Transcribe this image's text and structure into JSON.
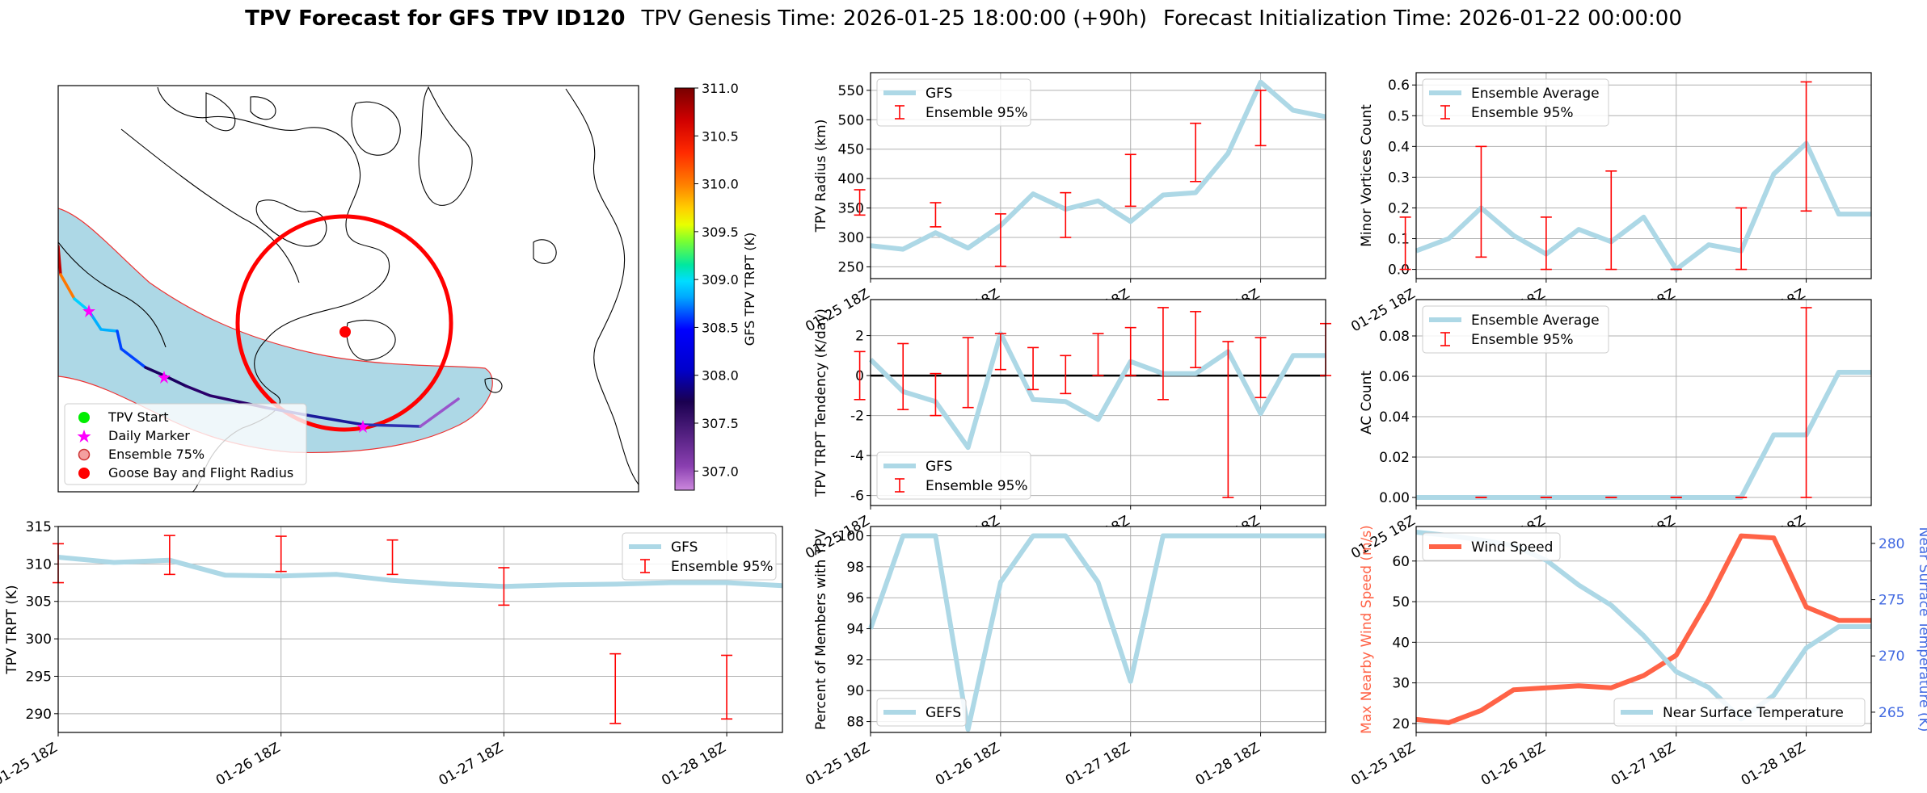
{
  "title": {
    "bold": "TPV Forecast for GFS TPV ID120",
    "genesis": "TPV Genesis Time: 2026-01-25 18:00:00 (+90h)",
    "init": "Forecast Initialization Time: 2026-01-22 00:00:00"
  },
  "colors": {
    "gfs_line": "#add8e6",
    "ensemble": "#ff0000",
    "wind": "#ff6347",
    "temp_axis": "#4169e1",
    "wind_axis": "#ff6347",
    "ocean_shade": "#add8e6",
    "zero_line": "#000000"
  },
  "x_ticks": [
    "01-25 18Z",
    "01-26 18Z",
    "01-27 18Z",
    "01-28 18Z"
  ],
  "map": {
    "legend": {
      "start": "TPV Start",
      "daily": "Daily Marker",
      "ensemble": "Ensemble 75%",
      "goose": "Goose Bay and Flight Radius"
    },
    "colorbar": {
      "label": "GFS TPV TRPT (K)",
      "min": 306.8,
      "max": 311.0,
      "ticks": [
        "311.0",
        "310.5",
        "310.0",
        "309.5",
        "309.0",
        "308.5",
        "308.0",
        "307.5",
        "307.0"
      ]
    },
    "icons": {
      "start": "green-circle",
      "daily": "magenta-star",
      "ensemble": "red-ring-circle",
      "goose": "red-circle"
    }
  },
  "chart_data": [
    {
      "id": "radius",
      "type": "line",
      "ylabel": "TPV Radius (km)",
      "xlim": [
        0,
        42
      ],
      "ylim": [
        230,
        580
      ],
      "yticks": [
        250,
        300,
        350,
        400,
        450,
        500,
        550
      ],
      "legend": [
        "GFS",
        "Ensemble 95%"
      ],
      "legend_loc": "upper-left",
      "series": [
        {
          "name": "GFS",
          "x": [
            0,
            3,
            6,
            9,
            12,
            15,
            18,
            21,
            24,
            27,
            30,
            33,
            36,
            39,
            42
          ],
          "y": [
            286,
            280,
            308,
            282,
            320,
            374,
            348,
            362,
            327,
            372,
            376,
            443,
            564,
            516,
            505
          ]
        }
      ],
      "errorbars": [
        {
          "x": -1,
          "lo": 338,
          "hi": 381
        },
        {
          "x": 6,
          "lo": 318,
          "hi": 359
        },
        {
          "x": 12,
          "lo": 251,
          "hi": 340
        },
        {
          "x": 18,
          "lo": 300,
          "hi": 376
        },
        {
          "x": 24,
          "lo": 353,
          "hi": 441
        },
        {
          "x": 30,
          "lo": 395,
          "hi": 494
        },
        {
          "x": 36,
          "lo": 456,
          "hi": 550
        }
      ]
    },
    {
      "id": "minor",
      "type": "line",
      "ylabel": "Minor Vortices Count",
      "xlim": [
        0,
        42
      ],
      "ylim": [
        -0.03,
        0.64
      ],
      "yticks": [
        0.0,
        0.1,
        0.2,
        0.3,
        0.4,
        0.5,
        0.6
      ],
      "ytick_decimals": 1,
      "legend": [
        "Ensemble Average",
        "Ensemble 95%"
      ],
      "legend_loc": "upper-left",
      "series": [
        {
          "name": "Ensemble Average",
          "x": [
            0,
            3,
            6,
            9,
            12,
            15,
            18,
            21,
            24,
            27,
            30,
            33,
            36,
            39,
            42
          ],
          "y": [
            0.06,
            0.1,
            0.2,
            0.11,
            0.05,
            0.13,
            0.09,
            0.17,
            0.0,
            0.08,
            0.06,
            0.31,
            0.41,
            0.18,
            0.18
          ]
        }
      ],
      "errorbars": [
        {
          "x": -1,
          "lo": 0.0,
          "hi": 0.17
        },
        {
          "x": 6,
          "lo": 0.04,
          "hi": 0.4
        },
        {
          "x": 12,
          "lo": 0.0,
          "hi": 0.17
        },
        {
          "x": 18,
          "lo": 0.0,
          "hi": 0.32
        },
        {
          "x": 24,
          "lo": 0.0,
          "hi": 0.0
        },
        {
          "x": 30,
          "lo": 0.0,
          "hi": 0.2
        },
        {
          "x": 36,
          "lo": 0.19,
          "hi": 0.61
        }
      ]
    },
    {
      "id": "tendency",
      "type": "line",
      "ylabel": "TPV TRPT Tendency (K/day)",
      "xlim": [
        0,
        42
      ],
      "ylim": [
        -6.5,
        3.8
      ],
      "yticks": [
        -6,
        -4,
        -2,
        0,
        2
      ],
      "zero_line": true,
      "legend": [
        "GFS",
        "Ensemble 95%"
      ],
      "legend_loc": "lower-left",
      "series": [
        {
          "name": "GFS",
          "x": [
            0,
            3,
            6,
            9,
            12,
            15,
            18,
            21,
            24,
            27,
            30,
            33,
            36,
            39,
            42
          ],
          "y": [
            0.8,
            -0.8,
            -1.3,
            -3.6,
            2.1,
            -1.2,
            -1.3,
            -2.2,
            0.7,
            0.1,
            0.1,
            1.2,
            -1.9,
            1.0,
            1.0
          ]
        }
      ],
      "errorbars": [
        {
          "x": -1,
          "lo": -1.2,
          "hi": 1.2
        },
        {
          "x": 3,
          "lo": -1.7,
          "hi": 1.6
        },
        {
          "x": 6,
          "lo": -2.0,
          "hi": 0.1
        },
        {
          "x": 9,
          "lo": -1.6,
          "hi": 1.9
        },
        {
          "x": 12,
          "lo": 0.3,
          "hi": 2.1
        },
        {
          "x": 15,
          "lo": -0.7,
          "hi": 1.4
        },
        {
          "x": 18,
          "lo": -0.9,
          "hi": 1.0
        },
        {
          "x": 21,
          "lo": 0.0,
          "hi": 2.1
        },
        {
          "x": 24,
          "lo": 0.0,
          "hi": 2.4
        },
        {
          "x": 27,
          "lo": -1.2,
          "hi": 3.4
        },
        {
          "x": 30,
          "lo": 0.4,
          "hi": 3.2
        },
        {
          "x": 33,
          "lo": -6.1,
          "hi": 1.7
        },
        {
          "x": 36,
          "lo": -1.1,
          "hi": 1.9
        },
        {
          "x": 42,
          "lo": 0.0,
          "hi": 2.6
        }
      ]
    },
    {
      "id": "ac",
      "type": "line",
      "ylabel": "AC Count",
      "xlim": [
        0,
        42
      ],
      "ylim": [
        -0.004,
        0.098
      ],
      "yticks": [
        0.0,
        0.02,
        0.04,
        0.06,
        0.08
      ],
      "ytick_decimals": 2,
      "legend": [
        "Ensemble Average",
        "Ensemble 95%"
      ],
      "legend_loc": "upper-left",
      "series": [
        {
          "name": "Ensemble Average",
          "x": [
            0,
            3,
            6,
            9,
            12,
            15,
            18,
            21,
            24,
            27,
            30,
            33,
            36,
            39,
            42
          ],
          "y": [
            0,
            0,
            0,
            0,
            0,
            0,
            0,
            0,
            0,
            0,
            0,
            0.031,
            0.031,
            0.062,
            0.062
          ]
        }
      ],
      "errorbars": [
        {
          "x": 6,
          "lo": 0.0,
          "hi": 0.0
        },
        {
          "x": 12,
          "lo": 0.0,
          "hi": 0.0
        },
        {
          "x": 18,
          "lo": 0.0,
          "hi": 0.0
        },
        {
          "x": 24,
          "lo": 0.0,
          "hi": 0.0
        },
        {
          "x": 30,
          "lo": 0.0,
          "hi": 0.0
        },
        {
          "x": 36,
          "lo": 0.0,
          "hi": 0.094
        }
      ]
    },
    {
      "id": "trpt",
      "type": "line",
      "ylabel": "TPV TRPT (K)",
      "xlim": [
        0,
        65
      ],
      "ylim": [
        287.5,
        315
      ],
      "yticks": [
        290,
        295,
        300,
        305,
        310,
        315
      ],
      "xticks": [
        0,
        20,
        40,
        60
      ],
      "legend": [
        "GFS",
        "Ensemble 95%"
      ],
      "legend_loc": "upper-right",
      "series": [
        {
          "name": "GFS",
          "x": [
            0,
            5,
            10,
            15,
            20,
            25,
            30,
            35,
            40,
            45,
            50,
            55,
            60,
            65
          ],
          "y": [
            310.9,
            310.2,
            310.5,
            308.5,
            308.4,
            308.6,
            307.8,
            307.3,
            307.0,
            307.2,
            307.3,
            307.5,
            307.5,
            307.1
          ]
        }
      ],
      "errorbars": [
        {
          "x": 0,
          "lo": 307.5,
          "hi": 312.7
        },
        {
          "x": 10,
          "lo": 308.6,
          "hi": 313.8
        },
        {
          "x": 20,
          "lo": 309.0,
          "hi": 313.7
        },
        {
          "x": 30,
          "lo": 308.6,
          "hi": 313.2
        },
        {
          "x": 40,
          "lo": 304.5,
          "hi": 309.5
        },
        {
          "x": 50,
          "lo": 288.7,
          "hi": 298.0
        },
        {
          "x": 60,
          "lo": 289.3,
          "hi": 297.8
        }
      ]
    },
    {
      "id": "percent",
      "type": "line",
      "ylabel": "Percent of Members with TPV",
      "xlim": [
        0,
        42
      ],
      "ylim": [
        87.3,
        100.6
      ],
      "yticks": [
        88,
        90,
        92,
        94,
        96,
        98,
        100
      ],
      "legend": [
        "GEFS"
      ],
      "legend_loc": "lower-left",
      "series": [
        {
          "name": "GEFS",
          "x": [
            0,
            3,
            6,
            9,
            12,
            15,
            18,
            21,
            24,
            27,
            30,
            33,
            36,
            39,
            42
          ],
          "y": [
            94,
            100,
            100,
            87.5,
            97,
            100,
            100,
            97,
            90.6,
            100,
            100,
            100,
            100,
            100,
            100
          ]
        }
      ],
      "errorbars": []
    },
    {
      "id": "wind_temp",
      "type": "line",
      "ylabel": "Max Nearby Wind Speed (m/s)",
      "ylabel_right": "Near Surface Temperature (K)",
      "xlim": [
        0,
        42
      ],
      "ylim": [
        17.8,
        68.5
      ],
      "yticks": [
        20,
        30,
        40,
        50,
        60
      ],
      "ylim_right": [
        263.2,
        281.5
      ],
      "yticks_right": [
        265,
        270,
        275,
        280
      ],
      "legend": [
        "Wind Speed"
      ],
      "legend_right": [
        "Near Surface Temperature"
      ],
      "series": [
        {
          "name": "Wind Speed",
          "axis": "left",
          "x": [
            0,
            3,
            6,
            9,
            12,
            15,
            18,
            21,
            24,
            27,
            30,
            33,
            36,
            39,
            42
          ],
          "y": [
            21,
            20.2,
            23.2,
            28.3,
            28.8,
            29.3,
            28.8,
            31.8,
            36.8,
            50.5,
            66.2,
            65.7,
            48.7,
            45.4,
            45.4
          ]
        },
        {
          "name": "Near Surface Temperature",
          "axis": "right",
          "x": [
            0,
            3,
            6,
            9,
            12,
            15,
            18,
            21,
            24,
            27,
            30,
            33,
            36,
            39,
            42
          ],
          "y": [
            281,
            280.7,
            280.3,
            279.8,
            278.5,
            276.3,
            274.5,
            271.8,
            268.6,
            267.2,
            264.4,
            266.5,
            270.7,
            272.6,
            272.6
          ]
        }
      ],
      "errorbars": []
    }
  ]
}
